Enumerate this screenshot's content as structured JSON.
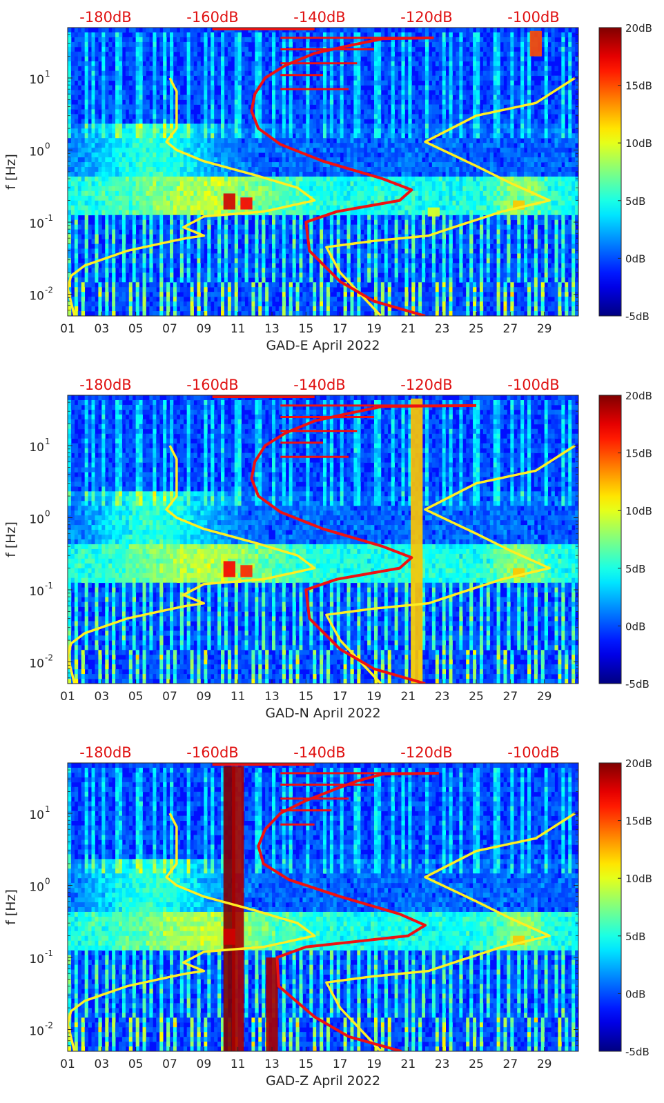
{
  "chart_data": [
    {
      "type": "heatmap",
      "title": "",
      "xlabel": "GAD-E April 2022",
      "ylabel": "f [Hz]",
      "x_ticks": [
        "01",
        "03",
        "05",
        "07",
        "09",
        "11",
        "13",
        "15",
        "17",
        "19",
        "21",
        "23",
        "25",
        "27",
        "29"
      ],
      "y_ticks": [
        "10^-2",
        "10^-1",
        "10^0",
        "10^1"
      ],
      "y_scale": "log",
      "ylim": [
        0.005,
        50
      ],
      "xlim": [
        1,
        31
      ],
      "top_axis_ticks": [
        "-180dB",
        "-160dB",
        "-140dB",
        "-120dB",
        "-100dB"
      ],
      "colorbar_ticks": [
        "20dB",
        "15dB",
        "10dB",
        "5dB",
        "0dB",
        "-5dB"
      ],
      "colorbar_range": [
        -5,
        20
      ],
      "colormap": "jet",
      "band_events": [
        {
          "day": 10.5,
          "fmin": 0.15,
          "fmax": 0.25,
          "level": 18
        },
        {
          "day": 11.5,
          "fmin": 0.15,
          "fmax": 0.22,
          "level": 17
        },
        {
          "day": 28.5,
          "fmin": 20,
          "fmax": 45,
          "level": 15
        },
        {
          "day": 22.5,
          "fmin": 0.12,
          "fmax": 0.16,
          "level": 10
        },
        {
          "day": 27.5,
          "fmin": 0.15,
          "fmax": 0.2,
          "level": 12
        }
      ],
      "series": [
        {
          "name": "",
          "color": "#ffee22",
          "x": [
            1.4,
            1.0,
            1.2,
            2.0,
            4.5,
            7.2,
            8.0,
            9.0,
            7.8,
            9.0,
            12.5,
            15.5,
            14.5,
            12.0,
            9.0,
            7.4,
            6.8,
            7.4,
            7.4,
            7.0
          ],
          "y": [
            0.005,
            0.012,
            0.018,
            0.025,
            0.04,
            0.055,
            0.06,
            0.065,
            0.085,
            0.12,
            0.14,
            0.2,
            0.3,
            0.45,
            0.7,
            1.0,
            1.3,
            2.0,
            6.5,
            10
          ],
          "secondary": {
            "x": [
              19.4,
              17.0,
              16.2,
              19.0,
              22.2,
              24.0,
              26.5,
              29.3,
              27.0,
              25.0,
              22.0,
              25.0,
              28.5,
              30.8
            ],
            "y": [
              0.005,
              0.02,
              0.045,
              0.055,
              0.065,
              0.09,
              0.14,
              0.2,
              0.35,
              0.6,
              1.3,
              3.0,
              4.5,
              10
            ]
          }
        },
        {
          "name": "",
          "color": "#ee1111",
          "x": [
            22.0,
            19.0,
            17.0,
            15.2,
            15.0,
            16.8,
            20.5,
            21.2,
            19.5,
            16.0,
            13.5,
            12.2,
            11.8,
            12.0,
            12.6,
            13.8,
            15.5,
            17.5,
            19.5,
            22.5
          ],
          "y": [
            0.005,
            0.008,
            0.015,
            0.04,
            0.1,
            0.14,
            0.2,
            0.28,
            0.4,
            0.7,
            1.2,
            2.0,
            3.5,
            6.0,
            10,
            15,
            22,
            28,
            35,
            36
          ],
          "spikes": [
            {
              "y": 7,
              "to": 17.5
            },
            {
              "y": 11,
              "to": 16
            },
            {
              "y": 16,
              "to": 18
            },
            {
              "y": 25,
              "to": 19
            },
            {
              "y": 36,
              "to": 22.5
            }
          ]
        }
      ]
    },
    {
      "type": "heatmap",
      "title": "",
      "xlabel": "GAD-N April 2022",
      "ylabel": "f [Hz]",
      "x_ticks": [
        "01",
        "03",
        "05",
        "07",
        "09",
        "11",
        "13",
        "15",
        "17",
        "19",
        "21",
        "23",
        "25",
        "27",
        "29"
      ],
      "y_ticks": [
        "10^-2",
        "10^-1",
        "10^0",
        "10^1"
      ],
      "y_scale": "log",
      "ylim": [
        0.005,
        50
      ],
      "xlim": [
        1,
        31
      ],
      "top_axis_ticks": [
        "-180dB",
        "-160dB",
        "-140dB",
        "-120dB",
        "-100dB"
      ],
      "colorbar_ticks": [
        "20dB",
        "15dB",
        "10dB",
        "5dB",
        "0dB",
        "-5dB"
      ],
      "colorbar_range": [
        -5,
        20
      ],
      "colormap": "jet",
      "band_events": [
        {
          "day": 10.5,
          "fmin": 0.15,
          "fmax": 0.25,
          "level": 17
        },
        {
          "day": 11.5,
          "fmin": 0.15,
          "fmax": 0.22,
          "level": 16
        },
        {
          "day": 21.5,
          "fmin": 0.005,
          "fmax": 45,
          "level": 12
        },
        {
          "day": 27.5,
          "fmin": 0.15,
          "fmax": 0.2,
          "level": 12
        }
      ],
      "series": [
        {
          "name": "",
          "color": "#ffee22",
          "x": [
            1.4,
            1.0,
            1.2,
            2.0,
            4.5,
            7.2,
            8.0,
            9.0,
            7.8,
            9.0,
            12.5,
            15.5,
            14.5,
            12.0,
            9.0,
            7.4,
            6.8,
            7.4,
            7.4,
            7.0
          ],
          "y": [
            0.005,
            0.012,
            0.018,
            0.025,
            0.04,
            0.055,
            0.06,
            0.065,
            0.085,
            0.12,
            0.14,
            0.2,
            0.3,
            0.45,
            0.7,
            1.0,
            1.3,
            2.0,
            6.5,
            10
          ],
          "secondary": {
            "x": [
              19.4,
              17.0,
              16.2,
              19.0,
              22.2,
              24.0,
              26.5,
              29.3,
              27.0,
              25.0,
              22.0,
              25.0,
              28.5,
              30.8
            ],
            "y": [
              0.005,
              0.02,
              0.045,
              0.055,
              0.065,
              0.09,
              0.14,
              0.2,
              0.35,
              0.6,
              1.3,
              3.0,
              4.5,
              10
            ]
          }
        },
        {
          "name": "",
          "color": "#ee1111",
          "x": [
            22.0,
            19.0,
            17.0,
            15.2,
            15.0,
            16.8,
            20.5,
            21.2,
            19.5,
            16.0,
            13.5,
            12.2,
            11.8,
            12.0,
            12.6,
            13.8,
            15.5,
            17.5,
            19.5,
            25.0
          ],
          "y": [
            0.005,
            0.008,
            0.015,
            0.04,
            0.1,
            0.14,
            0.2,
            0.28,
            0.4,
            0.7,
            1.2,
            2.0,
            3.5,
            6.0,
            10,
            15,
            22,
            28,
            35,
            36
          ],
          "spikes": [
            {
              "y": 7,
              "to": 17.5
            },
            {
              "y": 11,
              "to": 16
            },
            {
              "y": 16,
              "to": 18
            },
            {
              "y": 25,
              "to": 19
            },
            {
              "y": 36,
              "to": 25.0
            }
          ]
        }
      ]
    },
    {
      "type": "heatmap",
      "title": "",
      "xlabel": "GAD-Z April 2022",
      "ylabel": "f [Hz]",
      "x_ticks": [
        "01",
        "03",
        "05",
        "07",
        "09",
        "11",
        "13",
        "15",
        "17",
        "19",
        "21",
        "23",
        "25",
        "27",
        "29"
      ],
      "y_ticks": [
        "10^-2",
        "10^-1",
        "10^0",
        "10^1"
      ],
      "y_scale": "log",
      "ylim": [
        0.005,
        50
      ],
      "xlim": [
        1,
        31
      ],
      "top_axis_ticks": [
        "-180dB",
        "-160dB",
        "-140dB",
        "-120dB",
        "-100dB"
      ],
      "colorbar_ticks": [
        "20dB",
        "15dB",
        "10dB",
        "5dB",
        "0dB",
        "-5dB"
      ],
      "colorbar_range": [
        -5,
        20
      ],
      "colormap": "jet",
      "band_events": [
        {
          "day": 10.5,
          "fmin": 0.005,
          "fmax": 45,
          "level": 20
        },
        {
          "day": 11.0,
          "fmin": 0.005,
          "fmax": 45,
          "level": 19
        },
        {
          "day": 13.0,
          "fmin": 0.005,
          "fmax": 0.1,
          "level": 19
        },
        {
          "day": 10.5,
          "fmin": 0.15,
          "fmax": 0.25,
          "level": 18
        },
        {
          "day": 27.5,
          "fmin": 0.15,
          "fmax": 0.2,
          "level": 12
        }
      ],
      "series": [
        {
          "name": "",
          "color": "#ffee22",
          "x": [
            1.4,
            1.0,
            1.2,
            2.0,
            4.5,
            7.2,
            8.0,
            9.0,
            7.8,
            9.0,
            12.5,
            15.5,
            14.5,
            12.0,
            9.0,
            7.4,
            6.8,
            7.4,
            7.4,
            7.0
          ],
          "y": [
            0.005,
            0.012,
            0.018,
            0.025,
            0.04,
            0.055,
            0.06,
            0.065,
            0.085,
            0.12,
            0.14,
            0.2,
            0.3,
            0.45,
            0.7,
            1.0,
            1.3,
            2.0,
            6.5,
            10
          ],
          "secondary": {
            "x": [
              19.4,
              17.0,
              16.2,
              19.0,
              22.2,
              24.0,
              26.5,
              29.3,
              27.0,
              25.0,
              22.0,
              25.0,
              28.5,
              30.8
            ],
            "y": [
              0.005,
              0.02,
              0.045,
              0.055,
              0.065,
              0.09,
              0.14,
              0.2,
              0.35,
              0.6,
              1.3,
              3.0,
              4.5,
              10
            ]
          }
        },
        {
          "name": "",
          "color": "#ee1111",
          "x": [
            20.6,
            17.5,
            15.5,
            13.4,
            13.3,
            15.0,
            21.0,
            22.0,
            20.5,
            17.0,
            14.0,
            12.5,
            12.2,
            12.6,
            13.5,
            15.0,
            16.8,
            18.0,
            19.5,
            22.8
          ],
          "y": [
            0.005,
            0.008,
            0.015,
            0.04,
            0.1,
            0.14,
            0.2,
            0.28,
            0.4,
            0.7,
            1.2,
            2.0,
            3.5,
            6.0,
            10,
            15,
            22,
            28,
            35,
            36
          ],
          "spikes": [
            {
              "y": 7,
              "to": 15.5
            },
            {
              "y": 11,
              "to": 16.5
            },
            {
              "y": 16,
              "to": 17.5
            },
            {
              "y": 25,
              "to": 19
            },
            {
              "y": 36,
              "to": 22.8
            }
          ]
        }
      ]
    }
  ]
}
